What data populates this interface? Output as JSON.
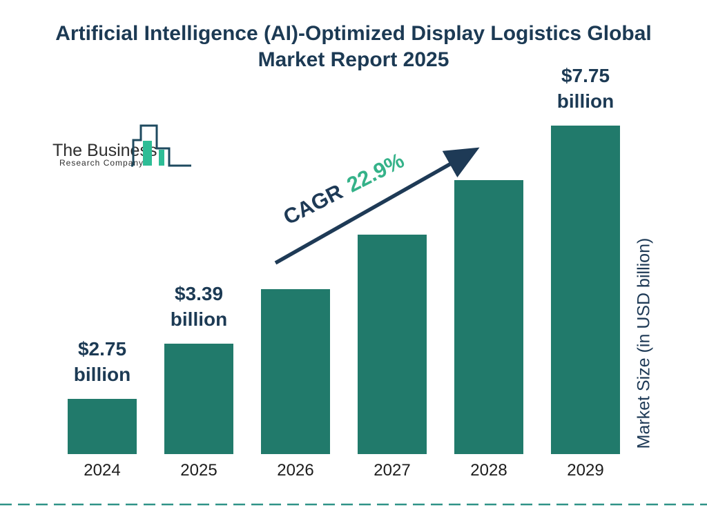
{
  "title": "Artificial Intelligence (AI)-Optimized Display Logistics Global Market Report 2025",
  "logo": {
    "line1": "The Business",
    "line2": "Research Company"
  },
  "cagr": {
    "label": "CAGR",
    "value": "22.9%"
  },
  "colors": {
    "navy": "#1c3a54",
    "bar_teal": "#217a6b",
    "accent_green": "#35b289",
    "dashed_line_teal": "#2f9387"
  },
  "chart_data": {
    "type": "bar",
    "title": "Artificial Intelligence (AI)-Optimized Display Logistics Global Market Report 2025",
    "categories": [
      "2024",
      "2025",
      "2026",
      "2027",
      "2028",
      "2029"
    ],
    "values": [
      2.75,
      3.39,
      4.17,
      5.12,
      6.3,
      7.75
    ],
    "labels": [
      [
        "$2.75",
        "billion"
      ],
      [
        "$3.39",
        "billion"
      ],
      null,
      null,
      null,
      [
        "$7.75",
        "billion"
      ]
    ],
    "ylabel": "Market Size (in USD billion)",
    "xlabel": "",
    "annotation_cagr": "CAGR 22.9%",
    "scale": "log",
    "grid": false,
    "legend": false
  }
}
